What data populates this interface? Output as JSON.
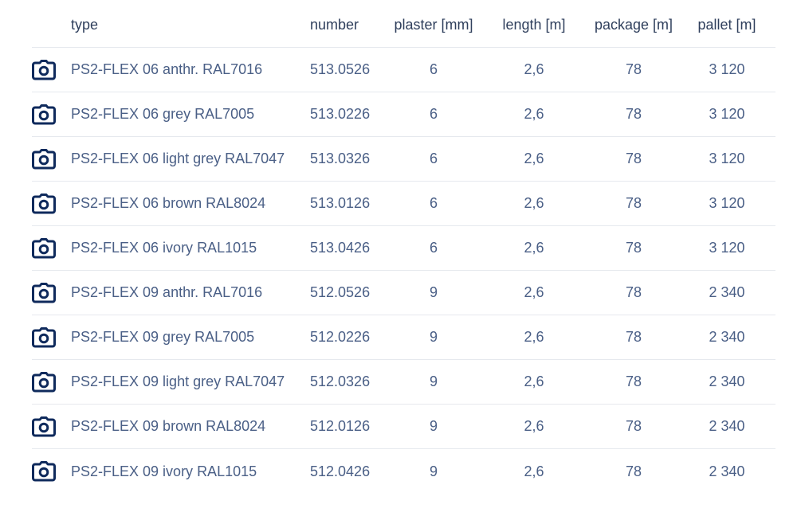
{
  "colors": {
    "text": "#4a5f86",
    "header_text": "#2f3f5c",
    "icon": "#0f2a5c",
    "divider": "#e6e9ee"
  },
  "header": {
    "type": "type",
    "number": "number",
    "plaster": "plaster [mm]",
    "length": "length [m]",
    "package": "package [m]",
    "pallet": "pallet [m]"
  },
  "row_icon": "camera-icon",
  "rows": [
    {
      "type": "PS2-FLEX 06 anthr. RAL7016",
      "number": "513.0526",
      "plaster": "6",
      "length": "2,6",
      "package": "78",
      "pallet": "3 120"
    },
    {
      "type": "PS2-FLEX 06 grey RAL7005",
      "number": "513.0226",
      "plaster": "6",
      "length": "2,6",
      "package": "78",
      "pallet": "3 120"
    },
    {
      "type": "PS2-FLEX 06 light grey RAL7047",
      "number": "513.0326",
      "plaster": "6",
      "length": "2,6",
      "package": "78",
      "pallet": "3 120"
    },
    {
      "type": "PS2-FLEX 06 brown RAL8024",
      "number": "513.0126",
      "plaster": "6",
      "length": "2,6",
      "package": "78",
      "pallet": "3 120"
    },
    {
      "type": "PS2-FLEX 06 ivory RAL1015",
      "number": "513.0426",
      "plaster": "6",
      "length": "2,6",
      "package": "78",
      "pallet": "3 120"
    },
    {
      "type": "PS2-FLEX 09 anthr. RAL7016",
      "number": "512.0526",
      "plaster": "9",
      "length": "2,6",
      "package": "78",
      "pallet": "2 340"
    },
    {
      "type": "PS2-FLEX 09 grey RAL7005",
      "number": "512.0226",
      "plaster": "9",
      "length": "2,6",
      "package": "78",
      "pallet": "2 340"
    },
    {
      "type": "PS2-FLEX 09 light grey RAL7047",
      "number": "512.0326",
      "plaster": "9",
      "length": "2,6",
      "package": "78",
      "pallet": "2 340"
    },
    {
      "type": "PS2-FLEX 09 brown RAL8024",
      "number": "512.0126",
      "plaster": "9",
      "length": "2,6",
      "package": "78",
      "pallet": "2 340"
    },
    {
      "type": "PS2-FLEX 09 ivory RAL1015",
      "number": "512.0426",
      "plaster": "9",
      "length": "2,6",
      "package": "78",
      "pallet": "2 340"
    }
  ]
}
